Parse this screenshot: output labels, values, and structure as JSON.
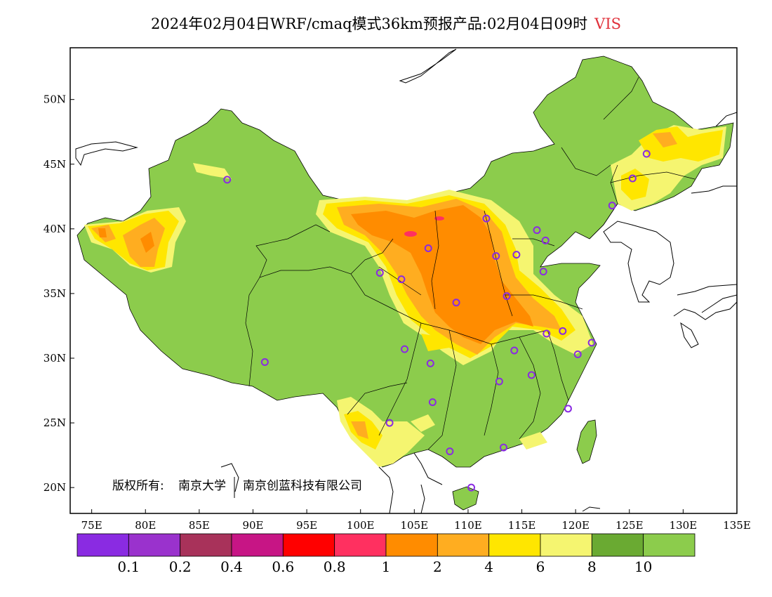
{
  "title": {
    "main": "2024年02月04日WRF/cmaq模式36km预报产品:02月04日09时",
    "variable": "VIS"
  },
  "copyright": {
    "prefix": "版权所有:",
    "org1": "南京大学",
    "org2": "南京创蓝科技有限公司"
  },
  "colors": {
    "water_land_bg": "#ffffff",
    "coast": "#000000",
    "station": "#8a2be2"
  },
  "chart_data": {
    "type": "heatmap",
    "xlabel": "",
    "ylabel": "",
    "xlim": [
      73,
      135
    ],
    "ylim": [
      18,
      54
    ],
    "x_ticks": [
      "75E",
      "80E",
      "85E",
      "90E",
      "95E",
      "100E",
      "105E",
      "110E",
      "115E",
      "120E",
      "125E",
      "130E",
      "135E"
    ],
    "y_ticks": [
      "20N",
      "25N",
      "30N",
      "35N",
      "40N",
      "45N",
      "50N"
    ],
    "legend": {
      "colors": [
        "#8a2be2",
        "#9a32cd",
        "#a8325a",
        "#c71585",
        "#ff0000",
        "#ff3060",
        "#ff8c00",
        "#ffad20",
        "#ffe600",
        "#f5f570",
        "#6aaa32",
        "#8ccc4c"
      ],
      "labels": [
        "0.1",
        "0.2",
        "0.4",
        "0.6",
        "0.8",
        "1",
        "2",
        "4",
        "6",
        "8",
        "10"
      ]
    },
    "stations": [
      [
        87.6,
        43.8
      ],
      [
        101.8,
        36.6
      ],
      [
        103.8,
        36.1
      ],
      [
        106.3,
        38.5
      ],
      [
        108.9,
        34.3
      ],
      [
        111.7,
        40.8
      ],
      [
        112.6,
        37.9
      ],
      [
        114.5,
        38.0
      ],
      [
        116.4,
        39.9
      ],
      [
        117.2,
        39.1
      ],
      [
        117.0,
        36.7
      ],
      [
        113.6,
        34.8
      ],
      [
        117.3,
        31.9
      ],
      [
        118.8,
        32.1
      ],
      [
        121.5,
        31.2
      ],
      [
        120.2,
        30.3
      ],
      [
        114.3,
        30.6
      ],
      [
        112.9,
        28.2
      ],
      [
        115.9,
        28.7
      ],
      [
        119.3,
        26.1
      ],
      [
        113.3,
        23.1
      ],
      [
        110.3,
        20.0
      ],
      [
        108.3,
        22.8
      ],
      [
        102.7,
        25.0
      ],
      [
        106.7,
        26.6
      ],
      [
        106.5,
        29.6
      ],
      [
        104.1,
        30.7
      ],
      [
        91.1,
        29.7
      ],
      [
        123.4,
        41.8
      ],
      [
        125.3,
        43.9
      ],
      [
        126.6,
        45.8
      ]
    ]
  }
}
